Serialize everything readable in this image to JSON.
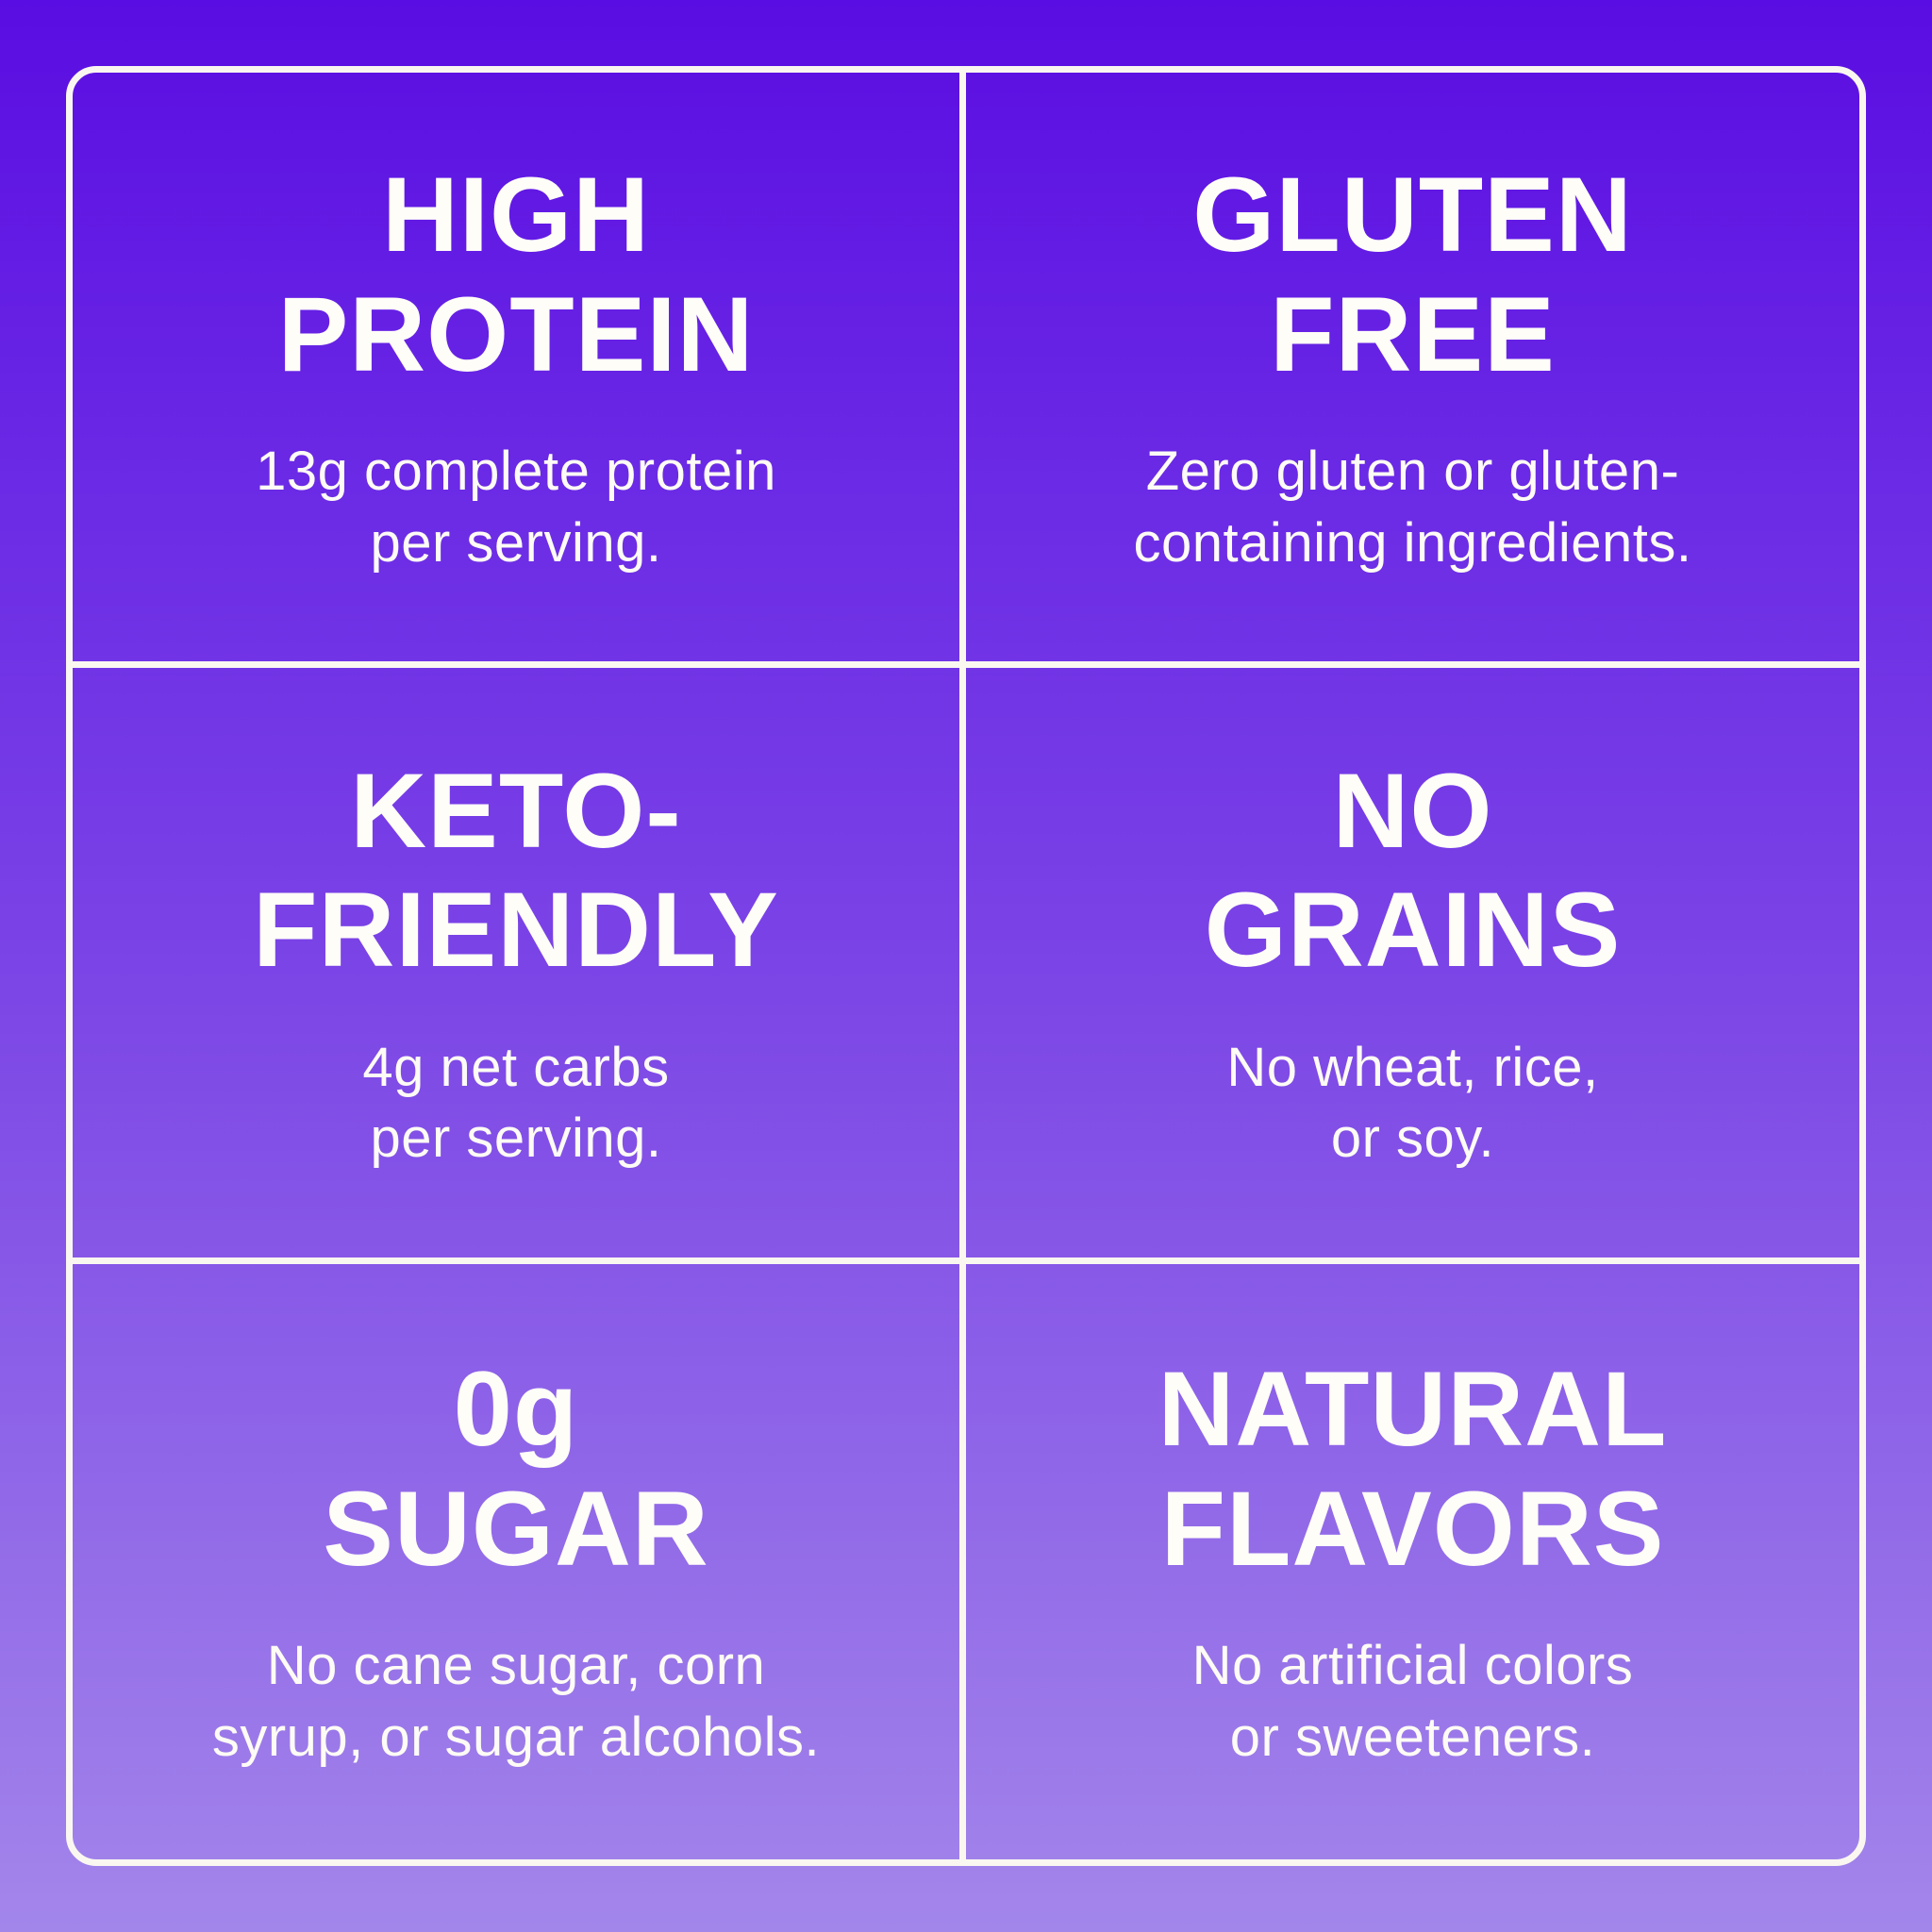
{
  "page": {
    "background_top_color": "#5a0de2",
    "background_bottom_color": "#a386ea",
    "grid_line_color": "#faf7f1",
    "text_color": "#fffdf8"
  },
  "cells": [
    {
      "id": "high-protein",
      "heading_line1": "HIGH",
      "heading_line2": "PROTEIN",
      "body_line1": "13g complete protein",
      "body_line2": "per serving."
    },
    {
      "id": "gluten-free",
      "heading_line1": "GLUTEN",
      "heading_line2": "FREE",
      "body_line1": "Zero gluten or gluten-",
      "body_line2": "containing ingredients."
    },
    {
      "id": "keto-friendly",
      "heading_line1": "KETO-",
      "heading_line2": "FRIENDLY",
      "body_line1": "4g net carbs",
      "body_line2": "per serving."
    },
    {
      "id": "no-grains",
      "heading_line1": "NO",
      "heading_line2": "GRAINS",
      "body_line1": "No wheat, rice,",
      "body_line2": "or soy."
    },
    {
      "id": "zero-sugar",
      "heading_line1": "0g",
      "heading_line2": "SUGAR",
      "body_line1": "No cane sugar, corn",
      "body_line2": "syrup, or sugar alcohols."
    },
    {
      "id": "natural-flavors",
      "heading_line1": "NATURAL",
      "heading_line2": "FLAVORS",
      "body_line1": "No artificial colors",
      "body_line2": "or sweeteners."
    }
  ]
}
